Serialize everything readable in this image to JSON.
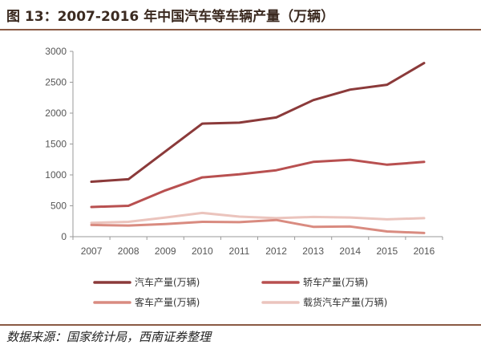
{
  "header": {
    "title": "图 13：2007-2016 年中国汽车等车辆产量（万辆）"
  },
  "footer": {
    "source": "数据来源：国家统计局，西南证券整理"
  },
  "chart_data": {
    "type": "line",
    "title": "图 13：2007-2016 年中国汽车等车辆产量（万辆）",
    "xlabel": "",
    "ylabel": "",
    "x": [
      "2007",
      "2008",
      "2009",
      "2010",
      "2011",
      "2012",
      "2013",
      "2014",
      "2015",
      "2016"
    ],
    "ylim": [
      0,
      3000
    ],
    "yticks": [
      0,
      500,
      1000,
      1500,
      2000,
      2500,
      3000
    ],
    "grid": false,
    "legend_position": "bottom",
    "series": [
      {
        "name": "汽车产量(万辆)",
        "color": "#8b3a3a",
        "values": [
          890,
          930,
          1380,
          1830,
          1845,
          1930,
          2210,
          2380,
          2460,
          2810
        ]
      },
      {
        "name": "轿车产量(万辆)",
        "color": "#b85050",
        "values": [
          480,
          500,
          750,
          960,
          1010,
          1075,
          1210,
          1245,
          1165,
          1210
        ]
      },
      {
        "name": "客车产量(万辆)",
        "color": "#d98b80",
        "values": [
          190,
          180,
          205,
          240,
          235,
          270,
          160,
          165,
          85,
          60
        ]
      },
      {
        "name": "载货汽车产量(万辆)",
        "color": "#ebc4bd",
        "values": [
          225,
          240,
          310,
          385,
          325,
          300,
          320,
          310,
          280,
          300
        ]
      }
    ]
  }
}
